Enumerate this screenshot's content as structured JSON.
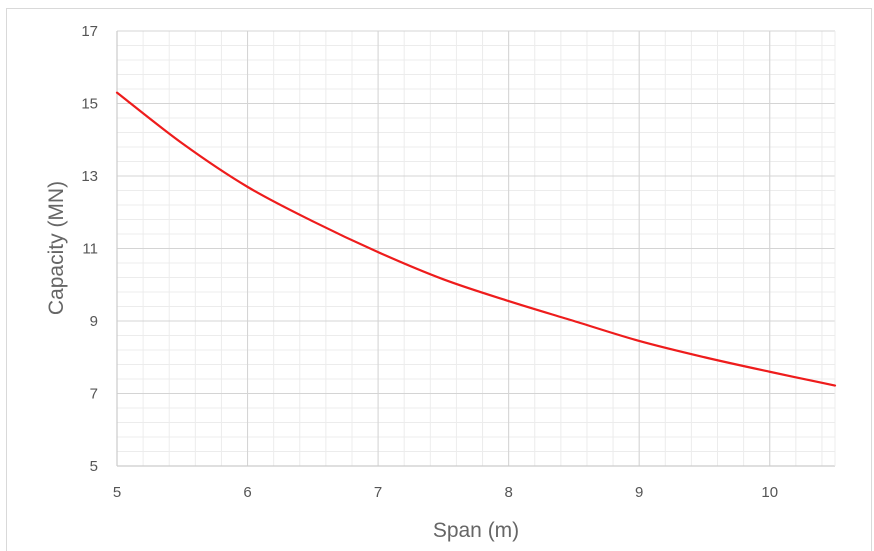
{
  "chart_data": {
    "type": "line",
    "title": "",
    "xlabel": "Span (m)",
    "ylabel": "Capacity (MN)",
    "xlim": [
      5,
      10.5
    ],
    "ylim": [
      5,
      17
    ],
    "xticks": [
      5,
      6,
      7,
      8,
      9,
      10
    ],
    "yticks": [
      5,
      7,
      9,
      11,
      13,
      15,
      17
    ],
    "grid": true,
    "minor_grid_per_major": 5,
    "legend": "none",
    "series": [
      {
        "color": "#ee1c1c",
        "x": [
          5,
          5.5,
          6,
          6.5,
          7,
          7.5,
          8,
          8.5,
          9,
          9.5,
          10,
          10.5
        ],
        "y": [
          15.3,
          13.9,
          12.7,
          11.75,
          10.9,
          10.15,
          9.55,
          9.0,
          8.45,
          8.0,
          7.6,
          7.22
        ]
      }
    ]
  },
  "colors": {
    "major_grid": "#d4d4d4",
    "minor_grid": "#ececec",
    "axis": "#cccccc"
  }
}
